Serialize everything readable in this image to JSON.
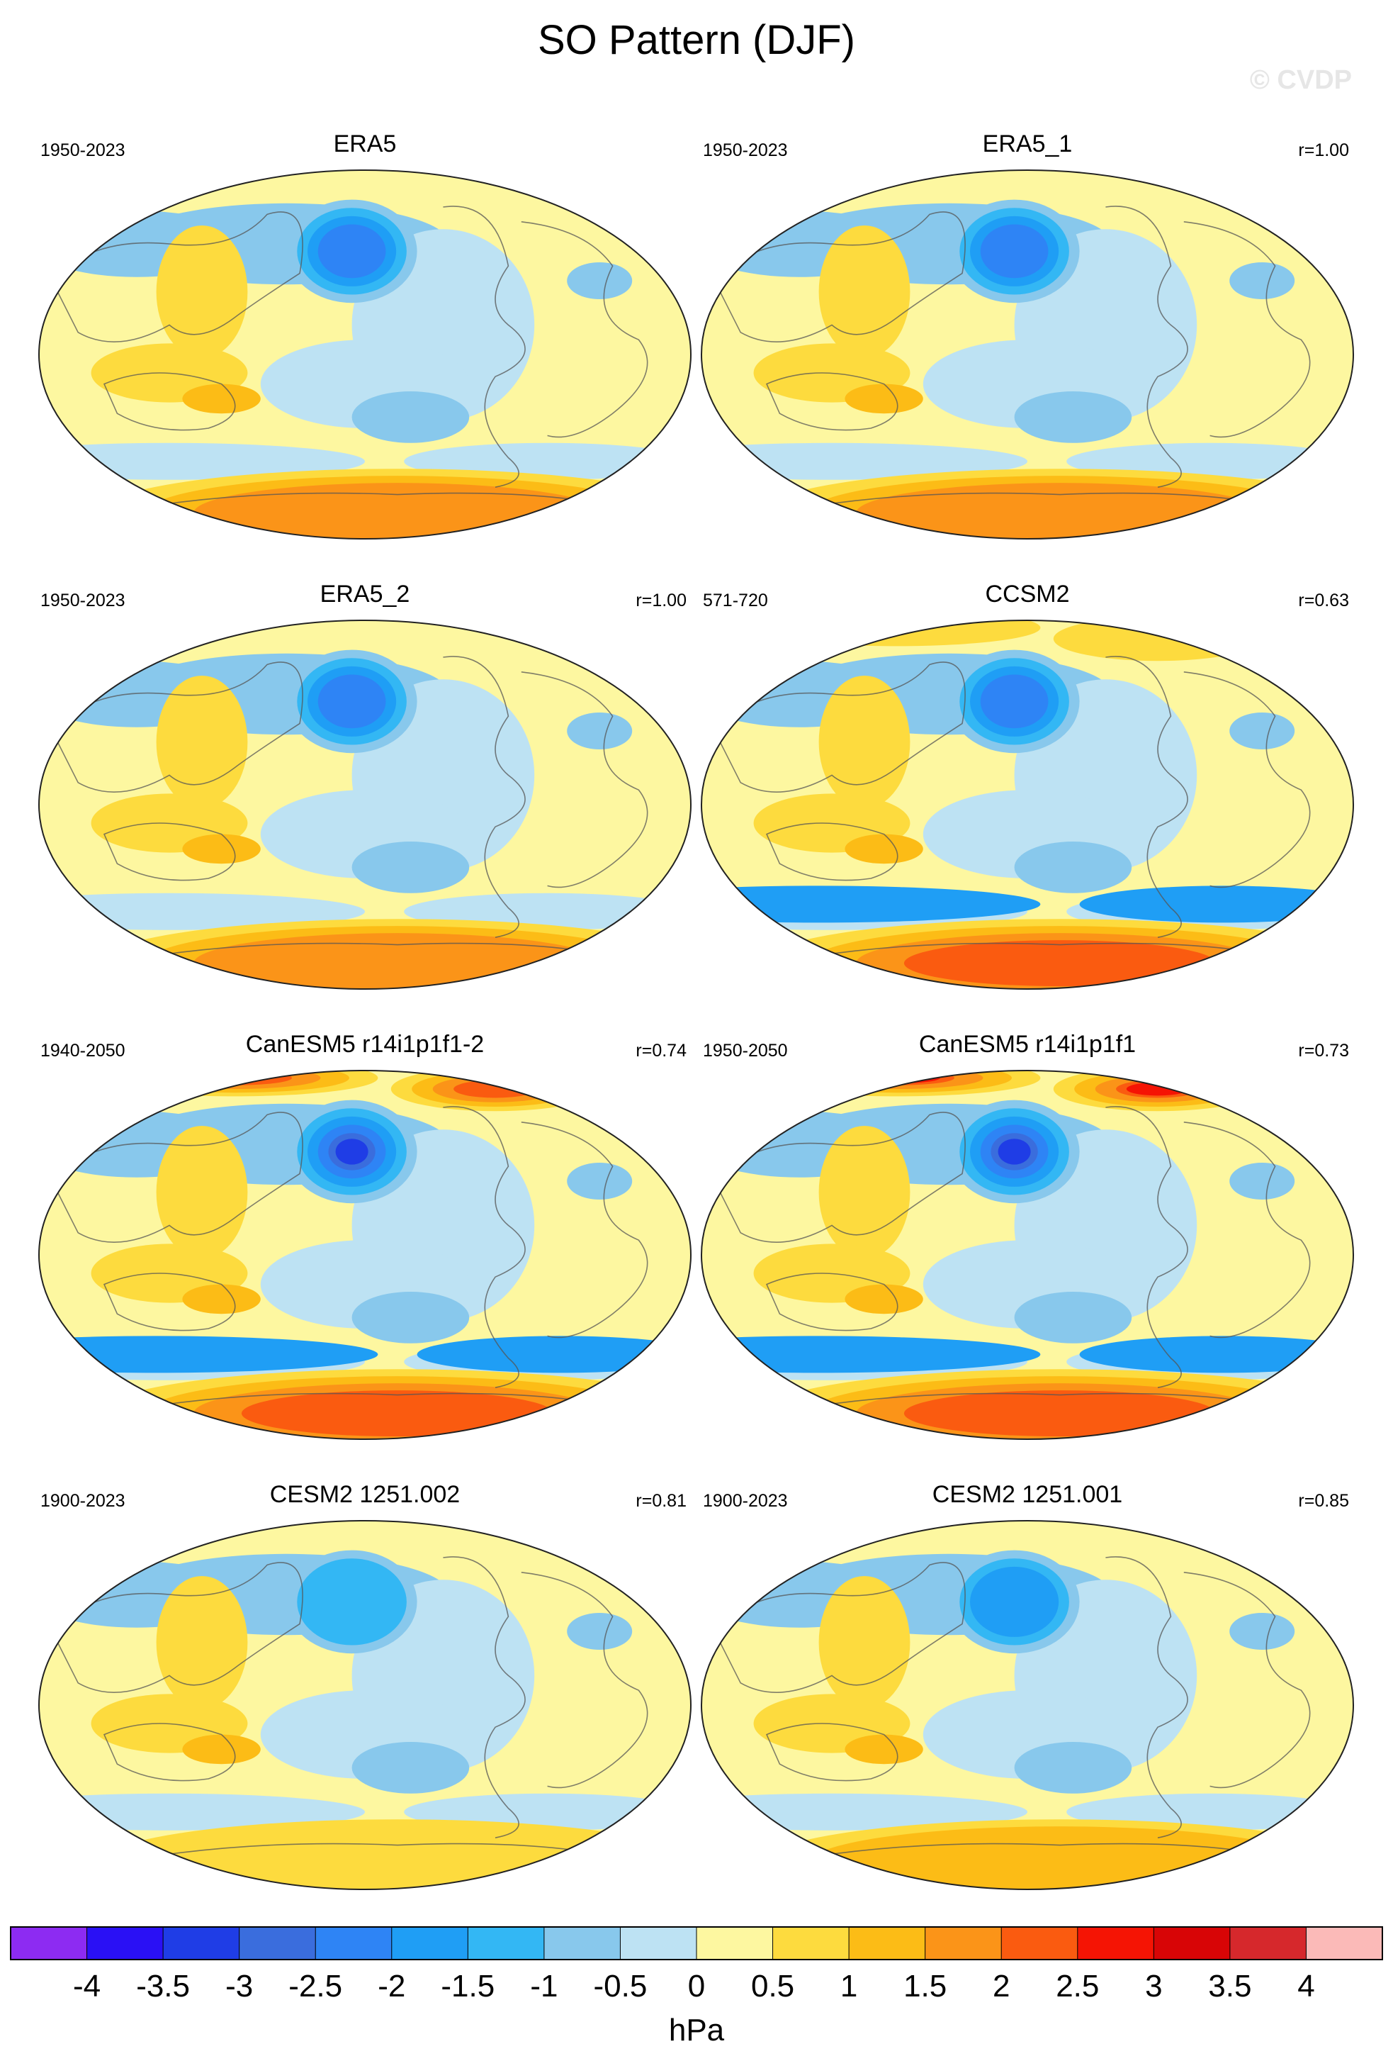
{
  "title": "SO Pattern (DJF)",
  "watermark": "© CVDP",
  "chart_data": {
    "type": "map",
    "projection": "Robinson (Pacific-centered)",
    "variable": "sea level pressure regression pattern",
    "units": "hPa",
    "panels": [
      {
        "name": "ERA5",
        "period": "1950-2023",
        "r": "",
        "southern_max": 2.0,
        "nh_min": -2.5,
        "arctic_max": 0.5
      },
      {
        "name": "ERA5_1",
        "period": "1950-2023",
        "r": "r=1.00",
        "southern_max": 2.0,
        "nh_min": -2.5,
        "arctic_max": 0.5
      },
      {
        "name": "ERA5_2",
        "period": "1950-2023",
        "r": "r=1.00",
        "southern_max": 2.0,
        "nh_min": -2.5,
        "arctic_max": 0.5
      },
      {
        "name": "CCSM2",
        "period": "571-720",
        "r": "r=0.63",
        "southern_max": 2.5,
        "nh_min": -2.5,
        "arctic_max": 1.0
      },
      {
        "name": "CanESM5 r14i1p1f1-2",
        "period": "1940-2050",
        "r": "r=0.74",
        "southern_max": 2.5,
        "nh_min": -3.5,
        "arctic_max": 2.5
      },
      {
        "name": "CanESM5 r14i1p1f1",
        "period": "1950-2050",
        "r": "r=0.73",
        "southern_max": 2.5,
        "nh_min": -3.5,
        "arctic_max": 3.0
      },
      {
        "name": "CESM2 1251.002",
        "period": "1900-2023",
        "r": "r=0.81",
        "southern_max": 1.0,
        "nh_min": -1.5,
        "arctic_max": 0.5
      },
      {
        "name": "CESM2 1251.001",
        "period": "1900-2023",
        "r": "r=0.85",
        "southern_max": 1.5,
        "nh_min": -2.0,
        "arctic_max": 0.5
      }
    ],
    "colorbar": {
      "label": "hPa",
      "ticks": [
        "-4",
        "-3.5",
        "-3",
        "-2.5",
        "-2",
        "-1.5",
        "-1",
        "-0.5",
        "0",
        "0.5",
        "1",
        "1.5",
        "2",
        "2.5",
        "3",
        "3.5",
        "4"
      ],
      "colors": [
        "#8d2bf2",
        "#2a10f5",
        "#1f3de6",
        "#3a6ddd",
        "#2e84f5",
        "#1f9ef5",
        "#33b7f4",
        "#88c8ec",
        "#bde2f3",
        "#fdf7a0",
        "#fddb3e",
        "#fcbc16",
        "#fb9418",
        "#fa5b10",
        "#f51404",
        "#d80506",
        "#d6282c",
        "#fbbab8"
      ]
    }
  }
}
